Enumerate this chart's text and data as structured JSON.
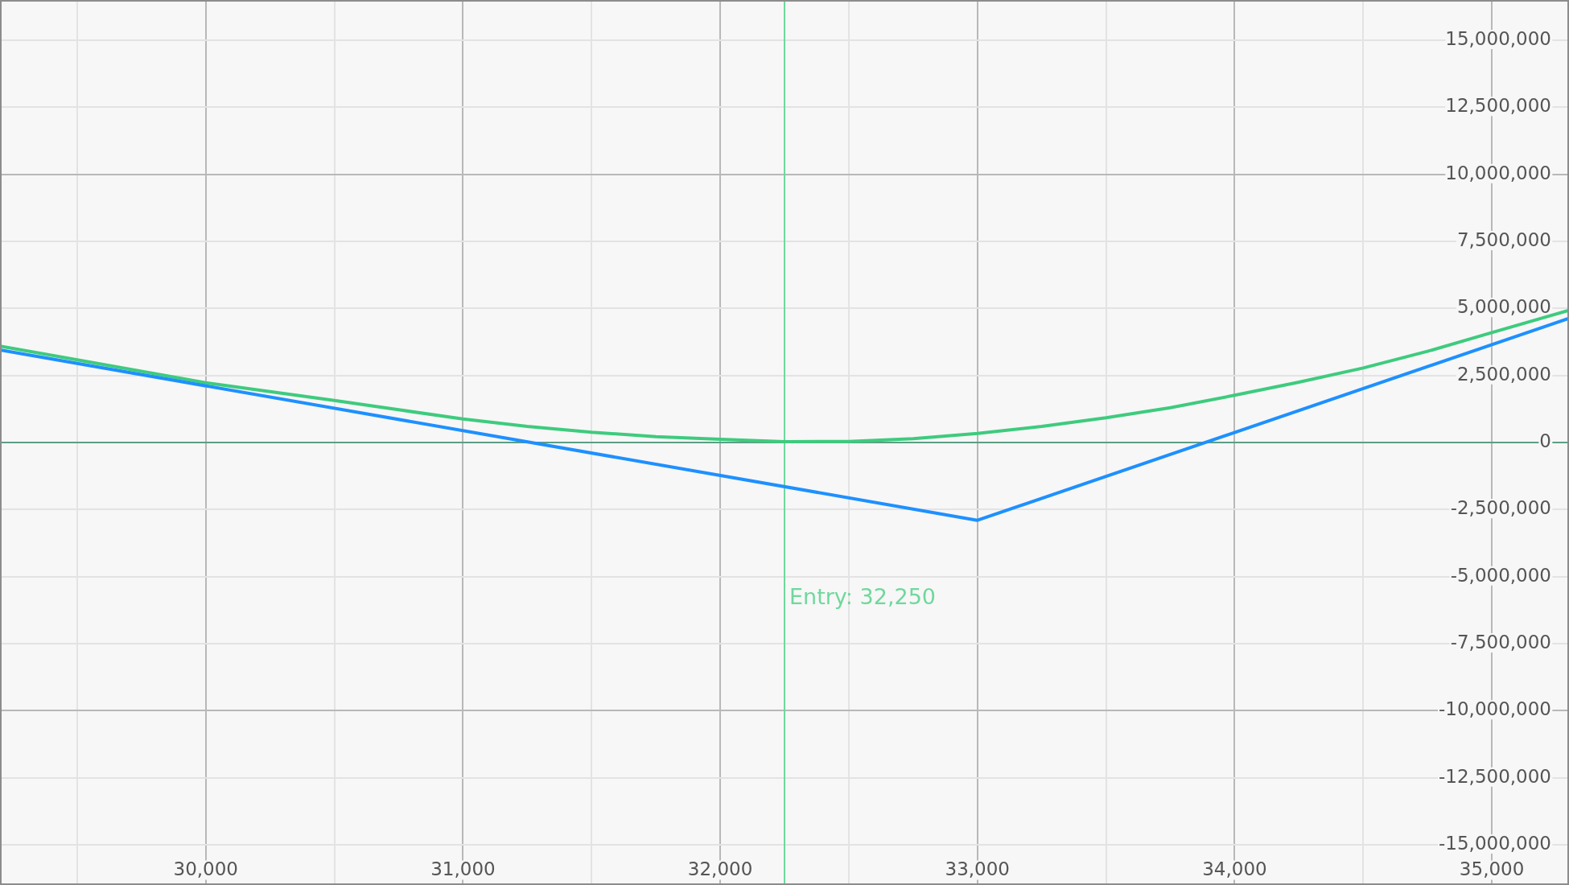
{
  "chart_data": {
    "type": "line",
    "xlim": [
      29200,
      35300
    ],
    "xticks": [
      {
        "value": 29500,
        "label": null
      },
      {
        "value": 30000,
        "label": "30,000"
      },
      {
        "value": 30500,
        "label": null
      },
      {
        "value": 31000,
        "label": "31,000"
      },
      {
        "value": 31500,
        "label": null
      },
      {
        "value": 32000,
        "label": "32,000"
      },
      {
        "value": 32500,
        "label": null
      },
      {
        "value": 33000,
        "label": "33,000"
      },
      {
        "value": 33500,
        "label": null
      },
      {
        "value": 34000,
        "label": "34,000"
      },
      {
        "value": 34500,
        "label": null
      },
      {
        "value": 35000,
        "label": "35,000"
      }
    ],
    "ylim": [
      -16500000,
      16500000
    ],
    "yticks": [
      {
        "value": -15000000,
        "label": "-15,000,000"
      },
      {
        "value": -12500000,
        "label": "-12,500,000"
      },
      {
        "value": -10000000,
        "label": "-10,000,000"
      },
      {
        "value": -7500000,
        "label": "-7,500,000"
      },
      {
        "value": -5000000,
        "label": "-5,000,000"
      },
      {
        "value": -2500000,
        "label": "-2,500,000"
      },
      0,
      {
        "value": 2500000,
        "label": "2,500,000"
      },
      {
        "value": 5000000,
        "label": "5,000,000"
      },
      {
        "value": 7500000,
        "label": "7,500,000"
      },
      {
        "value": 10000000,
        "label": "10,000,000"
      },
      {
        "value": 12500000,
        "label": "12,500,000"
      },
      {
        "value": 15000000,
        "label": "15,000,000"
      }
    ],
    "grid": true,
    "legend": false,
    "marker": "none",
    "series": [
      {
        "color": "#1e90ff",
        "x": [
          29200,
          33000,
          35300
        ],
        "values": [
          3450000,
          -2900000,
          4630000
        ]
      },
      {
        "color": "#3ecb7e",
        "x": [
          29200,
          29500,
          30000,
          30250,
          30500,
          30750,
          31000,
          31250,
          31500,
          31750,
          32000,
          32250,
          32500,
          32750,
          33000,
          33250,
          33500,
          33750,
          34000,
          34250,
          34500,
          34750,
          35000,
          35300
        ],
        "values": [
          3590000,
          3080000,
          2230000,
          1900000,
          1570000,
          1220000,
          880000,
          600000,
          380000,
          220000,
          120000,
          30000,
          40000,
          140000,
          340000,
          600000,
          920000,
          1300000,
          1760000,
          2250000,
          2780000,
          3400000,
          4100000,
          4930000
        ]
      }
    ],
    "ref_lines": [
      {
        "axis": "y",
        "value": 0,
        "color": "#5c9e84"
      },
      {
        "axis": "x",
        "value": 32250,
        "label": "Entry: 32,250",
        "color": "#6fd89c"
      }
    ]
  }
}
